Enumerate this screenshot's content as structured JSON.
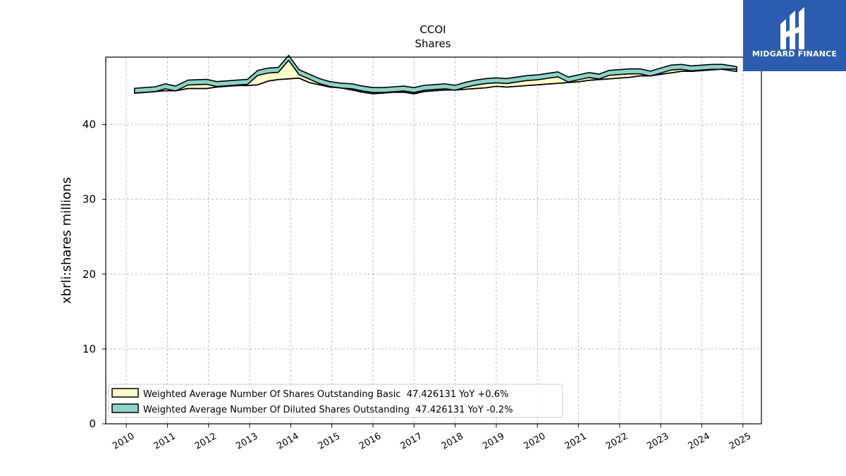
{
  "logo": {
    "text": "MIDGARD FINANCE",
    "background": "#2b5cb0"
  },
  "chart_data": {
    "type": "area",
    "title": "CCOI",
    "subtitle": "Shares",
    "ylabel": "xbrli:shares millions",
    "xlabel": "",
    "ylim": [
      0,
      49
    ],
    "yticks": [
      0,
      10,
      20,
      30,
      40
    ],
    "xticks": [
      "2010",
      "2011",
      "2012",
      "2013",
      "2014",
      "2015",
      "2016",
      "2017",
      "2018",
      "2019",
      "2020",
      "2021",
      "2022",
      "2023",
      "2024",
      "2025"
    ],
    "grid": true,
    "legend_position": "lower-left",
    "x": [
      2010.2,
      2010.45,
      2010.7,
      2010.95,
      2011.2,
      2011.5,
      2011.95,
      2012.2,
      2012.45,
      2012.7,
      2012.95,
      2013.2,
      2013.45,
      2013.7,
      2013.95,
      2014.2,
      2014.45,
      2014.7,
      2014.95,
      2015.2,
      2015.5,
      2015.75,
      2016.0,
      2016.25,
      2016.5,
      2016.75,
      2017.0,
      2017.25,
      2017.5,
      2017.75,
      2018.0,
      2018.25,
      2018.5,
      2018.75,
      2019.0,
      2019.25,
      2019.5,
      2019.75,
      2020.0,
      2020.25,
      2020.5,
      2020.75,
      2021.0,
      2021.25,
      2021.5,
      2021.75,
      2022.0,
      2022.25,
      2022.5,
      2022.75,
      2023.0,
      2023.25,
      2023.5,
      2023.75,
      2024.0,
      2024.25,
      2024.5,
      2024.85
    ],
    "series": [
      {
        "name": "Weighted Average Number Of Shares Outstanding Basic  47.426131 YoY +0.6%",
        "color": "#ffffcc",
        "values": [
          44.2,
          44.3,
          44.4,
          44.5,
          44.5,
          44.8,
          44.8,
          45.0,
          45.1,
          45.2,
          45.2,
          45.3,
          45.8,
          46.0,
          46.1,
          46.2,
          45.6,
          45.3,
          45.0,
          44.9,
          44.6,
          44.3,
          44.1,
          44.2,
          44.3,
          44.3,
          44.1,
          44.4,
          44.5,
          44.6,
          44.6,
          44.7,
          44.8,
          44.9,
          45.1,
          45.0,
          45.1,
          45.2,
          45.3,
          45.4,
          45.5,
          45.6,
          45.7,
          45.9,
          46.0,
          46.1,
          46.2,
          46.3,
          46.5,
          46.5,
          46.7,
          46.9,
          47.1,
          47.1,
          47.2,
          47.3,
          47.4,
          47.4
        ]
      },
      {
        "name": "Weighted Average Number Of Diluted Shares Outstanding  47.426131 YoY -0.2%",
        "color": "#8dd3c7",
        "values": [
          44.5,
          44.6,
          44.7,
          45.1,
          44.8,
          45.6,
          45.7,
          45.4,
          45.5,
          45.6,
          45.7,
          46.9,
          47.2,
          47.3,
          48.9,
          47.0,
          46.4,
          45.8,
          45.4,
          45.2,
          45.1,
          44.8,
          44.6,
          44.6,
          44.7,
          44.8,
          44.6,
          44.9,
          45.0,
          45.1,
          44.9,
          45.3,
          45.6,
          45.8,
          45.9,
          45.8,
          46.0,
          46.2,
          46.3,
          46.5,
          46.7,
          46.0,
          46.3,
          46.6,
          46.4,
          46.9,
          47.0,
          47.1,
          47.1,
          46.8,
          47.2,
          47.6,
          47.7,
          47.5,
          47.6,
          47.7,
          47.7,
          47.4
        ]
      }
    ]
  }
}
